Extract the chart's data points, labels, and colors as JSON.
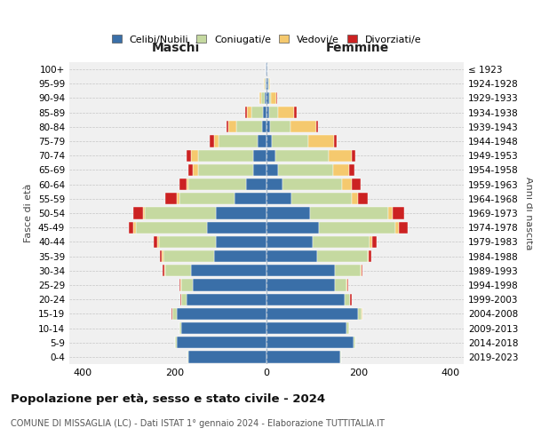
{
  "age_groups": [
    "0-4",
    "5-9",
    "10-14",
    "15-19",
    "20-24",
    "25-29",
    "30-34",
    "35-39",
    "40-44",
    "45-49",
    "50-54",
    "55-59",
    "60-64",
    "65-69",
    "70-74",
    "75-79",
    "80-84",
    "85-89",
    "90-94",
    "95-99",
    "100+"
  ],
  "birth_years": [
    "2019-2023",
    "2014-2018",
    "2009-2013",
    "2004-2008",
    "1999-2003",
    "1994-1998",
    "1989-1993",
    "1984-1988",
    "1979-1983",
    "1974-1978",
    "1969-1973",
    "1964-1968",
    "1959-1963",
    "1954-1958",
    "1949-1953",
    "1944-1948",
    "1939-1943",
    "1934-1938",
    "1929-1933",
    "1924-1928",
    "≤ 1923"
  ],
  "males": {
    "celibi": [
      170,
      195,
      185,
      195,
      175,
      160,
      165,
      115,
      110,
      130,
      110,
      70,
      45,
      30,
      30,
      20,
      10,
      8,
      4,
      2,
      1
    ],
    "coniugati": [
      2,
      5,
      5,
      10,
      10,
      25,
      55,
      110,
      125,
      155,
      155,
      120,
      125,
      120,
      120,
      85,
      55,
      25,
      8,
      2,
      0
    ],
    "vedovi": [
      0,
      0,
      0,
      1,
      1,
      2,
      2,
      3,
      3,
      5,
      5,
      5,
      5,
      10,
      15,
      10,
      18,
      10,
      4,
      1,
      0
    ],
    "divorziati": [
      0,
      0,
      0,
      1,
      2,
      3,
      5,
      5,
      8,
      10,
      20,
      25,
      15,
      10,
      10,
      8,
      4,
      4,
      0,
      0,
      0
    ]
  },
  "females": {
    "nubili": [
      160,
      190,
      175,
      200,
      170,
      150,
      150,
      110,
      100,
      115,
      95,
      55,
      35,
      25,
      20,
      12,
      8,
      6,
      5,
      3,
      1
    ],
    "coniugate": [
      2,
      3,
      5,
      8,
      12,
      25,
      55,
      110,
      125,
      165,
      170,
      130,
      130,
      120,
      115,
      80,
      45,
      20,
      5,
      2,
      0
    ],
    "vedove": [
      0,
      0,
      0,
      1,
      1,
      2,
      2,
      3,
      5,
      8,
      10,
      15,
      20,
      35,
      50,
      55,
      55,
      35,
      12,
      3,
      0
    ],
    "divorziate": [
      0,
      0,
      0,
      1,
      2,
      2,
      3,
      5,
      10,
      20,
      25,
      20,
      20,
      12,
      8,
      6,
      4,
      5,
      2,
      0,
      0
    ]
  },
  "colors": {
    "celibi": "#3a6fa8",
    "coniugati": "#c5d9a0",
    "vedovi": "#f5c96e",
    "divorziati": "#cc2222"
  },
  "xlim": 430,
  "title": "Popolazione per età, sesso e stato civile - 2024",
  "subtitle": "COMUNE DI MISSAGLIA (LC) - Dati ISTAT 1° gennaio 2024 - Elaborazione TUTTITALIA.IT",
  "xlabel_left": "Maschi",
  "xlabel_right": "Femmine",
  "ylabel_left": "Fasce di età",
  "ylabel_right": "Anni di nascita",
  "legend_labels": [
    "Celibi/Nubili",
    "Coniugati/e",
    "Vedovi/e",
    "Divorziati/e"
  ],
  "bg_color": "#f0f0f0"
}
